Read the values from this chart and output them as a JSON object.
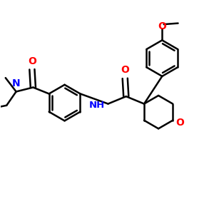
{
  "bg_color": "#ffffff",
  "bond_color": "#000000",
  "oxygen_color": "#ff0000",
  "nitrogen_color": "#0000ff",
  "line_width": 1.8,
  "figsize": [
    3.0,
    3.0
  ],
  "dpi": 100,
  "xlim": [
    0,
    10
  ],
  "ylim": [
    0,
    10
  ]
}
